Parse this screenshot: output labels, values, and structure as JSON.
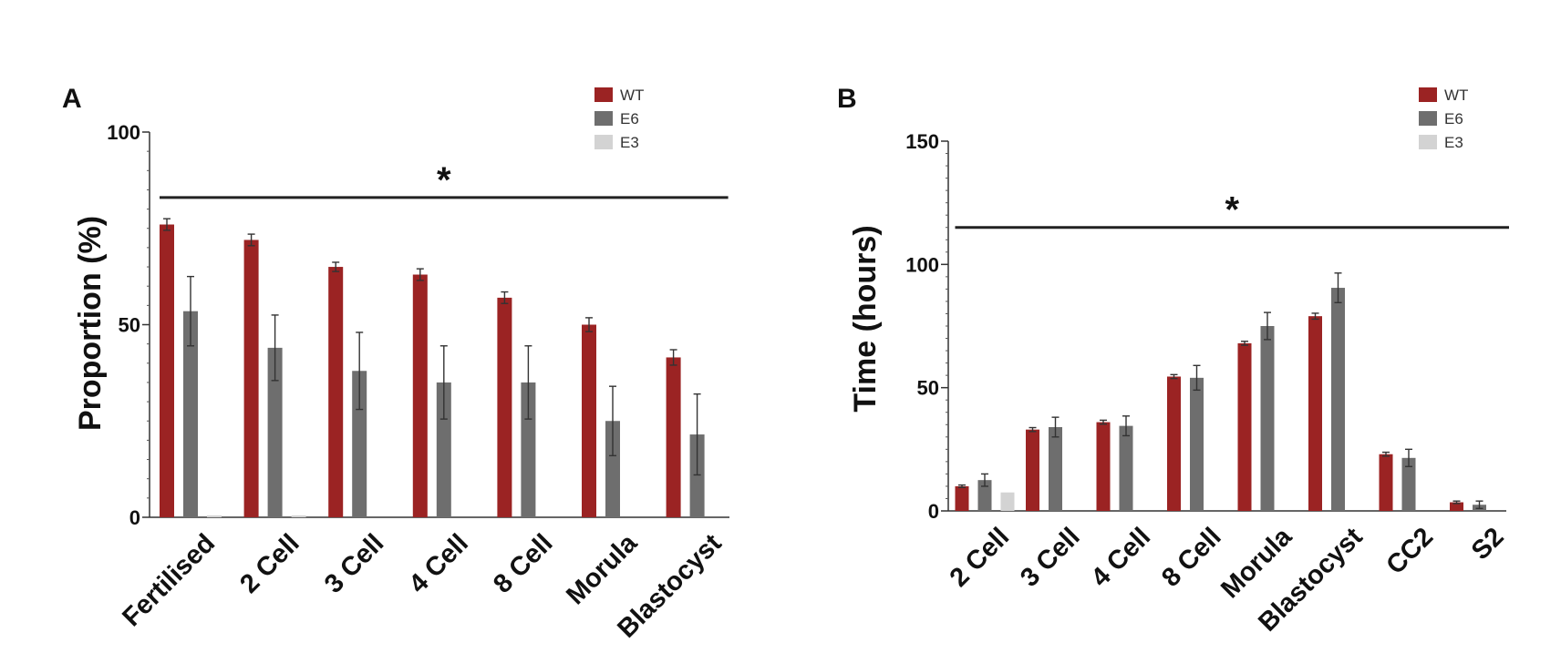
{
  "chart_data": [
    {
      "type": "bar",
      "panel": "A",
      "ylabel": "Proportion (%)",
      "xlabel": "",
      "ylim": [
        0,
        100
      ],
      "yticks": [
        "0",
        "50",
        "100"
      ],
      "ytick_values": [
        0,
        50,
        100
      ],
      "categories": [
        "Fertilised",
        "2 Cell",
        "3 Cell",
        "4 Cell",
        "8 Cell",
        "Morula",
        "Blastocyst"
      ],
      "series": [
        {
          "name": "WT",
          "color": "#9b2323",
          "values": [
            76,
            72,
            65,
            63,
            57,
            50,
            41.5
          ],
          "errors": [
            1.5,
            1.5,
            1.2,
            1.5,
            1.5,
            1.8,
            2
          ]
        },
        {
          "name": "E6",
          "color": "#6e6e6e",
          "values": [
            53.5,
            44,
            38,
            35,
            35,
            25,
            21.5
          ],
          "errors": [
            9,
            8.5,
            10,
            9.5,
            9.5,
            9,
            10.5
          ]
        },
        {
          "name": "E3",
          "color": "#d3d3d3",
          "values": [
            0.5,
            0.5,
            0,
            0,
            0,
            0,
            0
          ],
          "errors": [
            0,
            0,
            0,
            0,
            0,
            0,
            0
          ]
        }
      ],
      "annotation": {
        "text": "*",
        "span": [
          "Fertilised",
          "Blastocyst"
        ],
        "y": 83
      }
    },
    {
      "type": "bar",
      "panel": "B",
      "ylabel": "Time (hours)",
      "xlabel": "",
      "ylim": [
        0,
        150
      ],
      "yticks": [
        "0",
        "50",
        "100",
        "150"
      ],
      "ytick_values": [
        0,
        50,
        100,
        150
      ],
      "categories": [
        "2 Cell",
        "3 Cell",
        "4 Cell",
        "8 Cell",
        "Morula",
        "Blastocyst",
        "CC2",
        "S2"
      ],
      "series": [
        {
          "name": "WT",
          "color": "#9b2323",
          "values": [
            10,
            33,
            36,
            54.5,
            68,
            79,
            23,
            3.5
          ],
          "errors": [
            0.5,
            0.8,
            0.8,
            0.8,
            0.8,
            1.2,
            0.8,
            0.5
          ]
        },
        {
          "name": "E6",
          "color": "#6e6e6e",
          "values": [
            12.5,
            34,
            34.5,
            54,
            75,
            90.5,
            21.5,
            2.5
          ],
          "errors": [
            2.5,
            4,
            4,
            5,
            5.5,
            6,
            3.5,
            1.5
          ]
        },
        {
          "name": "E3",
          "color": "#d3d3d3",
          "values": [
            7.5,
            0,
            0,
            0,
            0,
            0,
            0,
            0
          ],
          "errors": [
            0,
            0,
            0,
            0,
            0,
            0,
            0,
            0
          ]
        }
      ],
      "annotation": {
        "text": "*",
        "span": [
          "2 Cell",
          "S2"
        ],
        "y": 115
      }
    }
  ]
}
